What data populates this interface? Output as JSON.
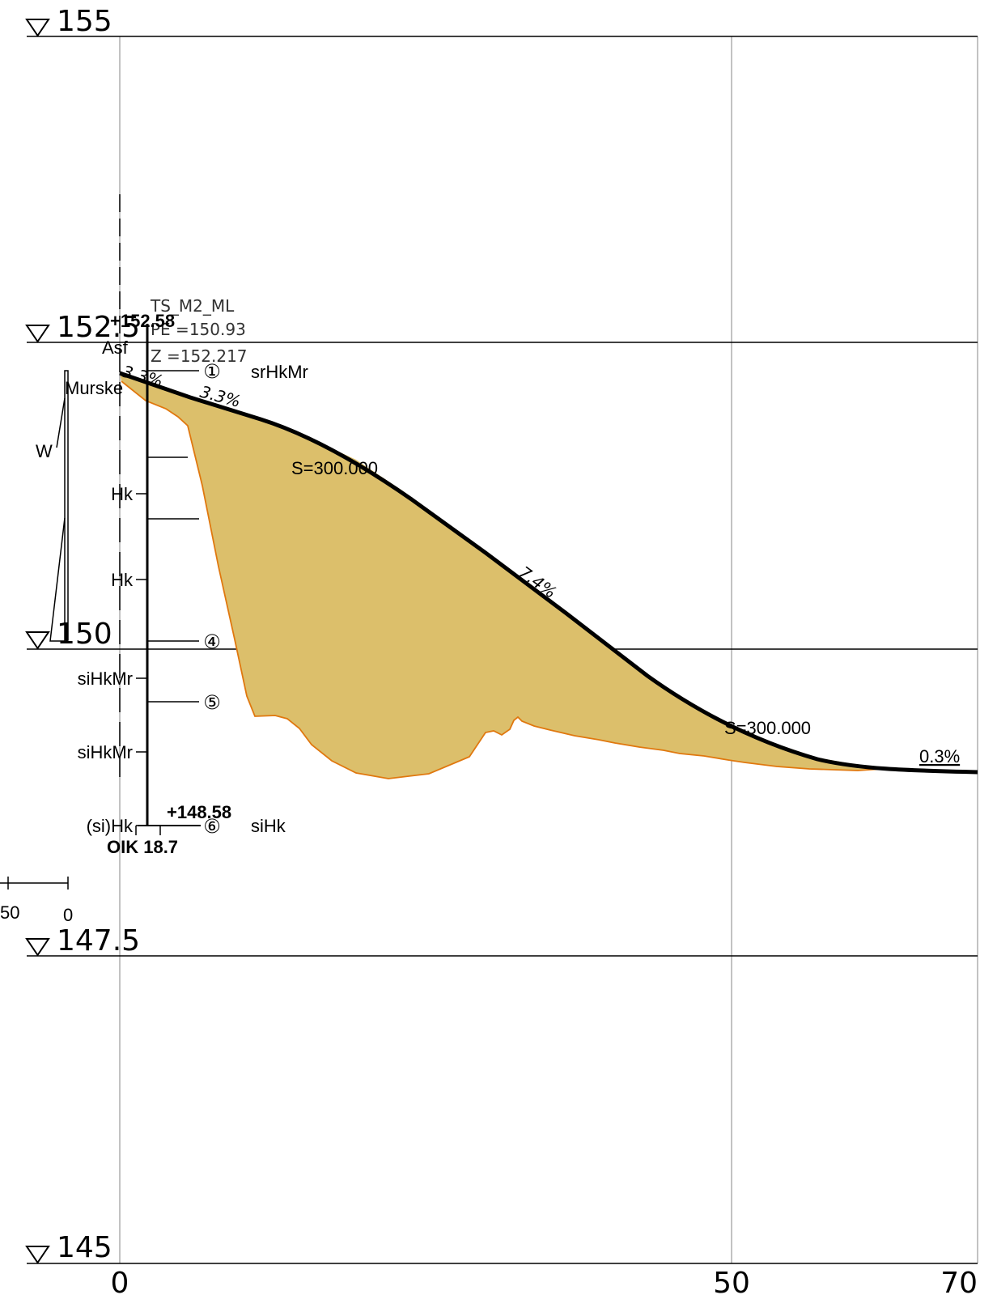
{
  "elevation_levels": [
    {
      "label": "155"
    },
    {
      "label": "152.5"
    },
    {
      "label": "150"
    },
    {
      "label": "147.5"
    },
    {
      "label": "145"
    }
  ],
  "station_ticks": [
    {
      "label": "0"
    },
    {
      "label": "50"
    },
    {
      "label": "70"
    }
  ],
  "borehole": {
    "top_level": "+152.58",
    "bottom_level": "+148.58",
    "stop_code": "OIK 18.7",
    "left_labels": [
      "Asf",
      "Murske",
      "Hk",
      "Hk",
      "siHkMr",
      "siHkMr",
      "(si)Hk"
    ],
    "samples": [
      "①",
      "④",
      "⑤",
      "⑥"
    ],
    "right_labels": [
      "srHkMr",
      "siHk"
    ]
  },
  "road_info": {
    "name": "TS_M2_ML",
    "pe": "PE =150.93",
    "z": "Z =152.217"
  },
  "profile_annotations": {
    "slope_1": "3.3%",
    "slope_2": "3.3%",
    "slope_3": "7.4%",
    "slope_4": "0.3%",
    "curve_1": "S=300.000",
    "curve_2": "S=300.000"
  },
  "sounding_graph": {
    "label": "W",
    "scale_left": "50",
    "scale_right": "0"
  },
  "colors": {
    "fill": "#dcbf6b",
    "fill_edge": "#e0780f",
    "profile": "#000000",
    "grid": "#999999"
  }
}
